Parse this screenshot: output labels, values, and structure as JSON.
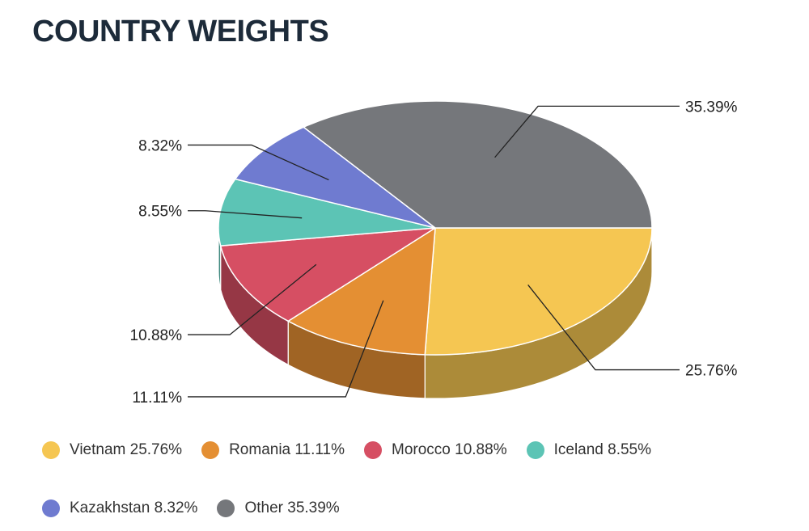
{
  "chart_data": {
    "type": "pie",
    "title": "COUNTRY WEIGHTS",
    "unit": "%",
    "categories": [
      "Vietnam",
      "Romania",
      "Morocco",
      "Iceland",
      "Kazakhstan",
      "Other"
    ],
    "values": [
      25.76,
      11.11,
      10.88,
      8.55,
      8.32,
      35.39
    ],
    "labels": [
      "25.76%",
      "11.11%",
      "10.88%",
      "8.55%",
      "8.32%",
      "35.39%"
    ],
    "legend_labels": [
      "Vietnam 25.76%",
      "Romania 11.11%",
      "Morocco 10.88%",
      "Iceland 8.55%",
      "Kazakhstan 8.32%",
      "Other 35.39%"
    ],
    "colors": [
      "#f5c652",
      "#e48f33",
      "#d64f63",
      "#5cc4b5",
      "#6f7bd0",
      "#75777b"
    ],
    "legend_position": "bottom",
    "style": "3d"
  }
}
